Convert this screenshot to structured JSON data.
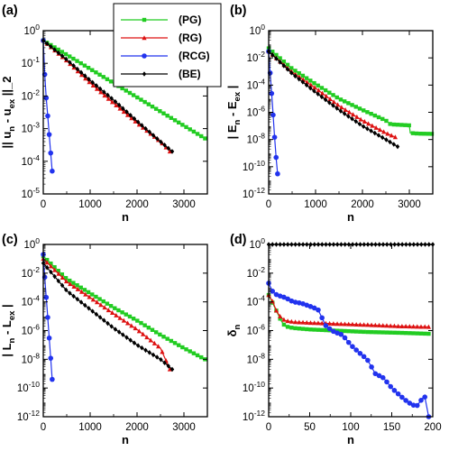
{
  "legend": [
    {
      "name": "(PG)",
      "color": "#22cc22",
      "marker": "square"
    },
    {
      "name": "(RG)",
      "color": "#dd1111",
      "marker": "triangle"
    },
    {
      "name": "(RCG)",
      "color": "#2233ee",
      "marker": "circle"
    },
    {
      "name": "(BE)",
      "color": "#000000",
      "marker": "diamond"
    }
  ],
  "chart_data": [
    {
      "panel": "(a)",
      "type": "line",
      "xlabel": "n",
      "ylabel": "|| u_n - u_ex ||_2",
      "xlim": [
        0,
        3500
      ],
      "xticks": [
        "0",
        "1000",
        "2000",
        "3000"
      ],
      "ylim_log10": [
        -5,
        0
      ],
      "yticks": [
        {
          "m": "10",
          "e": "-5"
        },
        {
          "m": "10",
          "e": "-4"
        },
        {
          "m": "10",
          "e": "-3"
        },
        {
          "m": "10",
          "e": "-2"
        },
        {
          "m": "10",
          "e": "-1"
        },
        {
          "m": "10",
          "e": "0"
        }
      ],
      "y_scale": "log",
      "series": [
        {
          "name": "(PG)",
          "x": [
            0,
            3450
          ],
          "y": [
            0.5,
            0.0005
          ]
        },
        {
          "name": "(RG)",
          "x": [
            0,
            500,
            1000,
            1500,
            2000,
            2500,
            2700
          ],
          "y": [
            0.5,
            0.12,
            0.025,
            0.006,
            0.0015,
            0.0004,
            0.0002
          ]
        },
        {
          "name": "(RCG)",
          "x": [
            0,
            30,
            60,
            100,
            150,
            190
          ],
          "y": [
            0.5,
            0.05,
            0.01,
            0.002,
            0.00025,
            5e-05
          ]
        },
        {
          "name": "(BE)",
          "x": [
            0,
            500,
            1000,
            1500,
            2000,
            2500,
            2750
          ],
          "y": [
            0.5,
            0.13,
            0.03,
            0.0075,
            0.0017,
            0.0004,
            0.0002
          ]
        }
      ]
    },
    {
      "panel": "(b)",
      "type": "line",
      "xlabel": "n",
      "ylabel": "| E_n - E_ex |",
      "xlim": [
        0,
        3500
      ],
      "xticks": [
        "0",
        "1000",
        "2000",
        "3000"
      ],
      "ylim_log10": [
        -12,
        0
      ],
      "yticks": [
        {
          "m": "10",
          "e": "-12"
        },
        {
          "m": "10",
          "e": "-10"
        },
        {
          "m": "10",
          "e": "-8"
        },
        {
          "m": "10",
          "e": "-6"
        },
        {
          "m": "10",
          "e": "-4"
        },
        {
          "m": "10",
          "e": "-2"
        },
        {
          "m": "10",
          "e": "0"
        }
      ],
      "y_scale": "log",
      "series": [
        {
          "name": "(PG)",
          "x": [
            0,
            500,
            1000,
            1500,
            2000,
            2500,
            2600,
            2800,
            3000,
            3020,
            3200,
            3480
          ],
          "y": [
            0.05,
            0.0016,
            0.00012,
            1e-05,
            1.5e-06,
            2.5e-07,
            1.3e-07,
            1.2e-07,
            1.1e-07,
            3e-08,
            2.7e-08,
            2.6e-08
          ]
        },
        {
          "name": "(RG)",
          "x": [
            0,
            500,
            1000,
            1500,
            2000,
            2500,
            2700
          ],
          "y": [
            0.03,
            0.0009,
            6e-05,
            3e-06,
            2.5e-07,
            3e-08,
            1.5e-08
          ]
        },
        {
          "name": "(RCG)",
          "x": [
            0,
            40,
            80,
            120,
            160,
            190
          ],
          "y": [
            0.03,
            0.0003,
            4e-06,
            3e-08,
            4e-10,
            3e-11
          ]
        },
        {
          "name": "(BE)",
          "x": [
            0,
            500,
            1000,
            1500,
            2000,
            2500,
            2750
          ],
          "y": [
            0.03,
            0.0007,
            3e-05,
            1.5e-06,
            1e-07,
            1e-08,
            3e-09
          ]
        }
      ]
    },
    {
      "panel": "(c)",
      "type": "line",
      "xlabel": "n",
      "ylabel": "| L_n - L_ex |",
      "xlim": [
        0,
        3500
      ],
      "xticks": [
        "0",
        "1000",
        "2000",
        "3000"
      ],
      "ylim_log10": [
        -12,
        0
      ],
      "yticks": [
        {
          "m": "10",
          "e": "-12"
        },
        {
          "m": "10",
          "e": "-10"
        },
        {
          "m": "10",
          "e": "-8"
        },
        {
          "m": "10",
          "e": "-6"
        },
        {
          "m": "10",
          "e": "-4"
        },
        {
          "m": "10",
          "e": "-2"
        },
        {
          "m": "10",
          "e": "0"
        }
      ],
      "y_scale": "log",
      "series": [
        {
          "name": "(PG)",
          "x": [
            0,
            500,
            1000,
            1500,
            2000,
            2500,
            3000,
            3450
          ],
          "y": [
            0.15,
            0.004,
            0.0004,
            4e-05,
            5e-06,
            5e-07,
            6e-08,
            1e-08
          ]
        },
        {
          "name": "(RG)",
          "x": [
            0,
            500,
            1000,
            1500,
            2000,
            2500,
            2700
          ],
          "y": [
            0.1,
            0.0025,
            0.0002,
            1.5e-05,
            1.2e-06,
            6e-08,
            2e-09
          ]
        },
        {
          "name": "(RCG)",
          "x": [
            0,
            40,
            80,
            120,
            160,
            190
          ],
          "y": [
            0.2,
            0.002,
            4e-05,
            6e-07,
            1e-08,
            4e-10
          ]
        },
        {
          "name": "(BE)",
          "x": [
            0,
            500,
            1000,
            1500,
            2000,
            2500,
            2750
          ],
          "y": [
            0.05,
            0.0006,
            3e-05,
            1.5e-06,
            1e-07,
            1e-08,
            2e-09
          ]
        }
      ]
    },
    {
      "panel": "(d)",
      "type": "line",
      "xlabel": "n",
      "ylabel": "δ_n",
      "xlim": [
        0,
        200
      ],
      "xticks": [
        "0",
        "50",
        "100",
        "150",
        "200"
      ],
      "ylim_log10": [
        -12,
        0
      ],
      "yticks": [
        {
          "m": "10",
          "e": "-12"
        },
        {
          "m": "10",
          "e": "-10"
        },
        {
          "m": "10",
          "e": "-8"
        },
        {
          "m": "10",
          "e": "-6"
        },
        {
          "m": "10",
          "e": "-4"
        },
        {
          "m": "10",
          "e": "-2"
        },
        {
          "m": "10",
          "e": "0"
        }
      ],
      "y_scale": "log",
      "series": [
        {
          "name": "(PG)",
          "x": [
            0,
            5,
            10,
            15,
            20,
            30,
            50,
            80,
            120,
            160,
            195
          ],
          "y": [
            0.0003,
            8e-05,
            2e-05,
            5e-06,
            2e-06,
            1.5e-06,
            1.2e-06,
            1e-06,
            8e-07,
            7e-07,
            6e-07
          ]
        },
        {
          "name": "(RG)",
          "x": [
            0,
            5,
            10,
            15,
            20,
            30,
            50,
            80,
            120,
            160,
            195
          ],
          "y": [
            0.0003,
            0.0001,
            2e-05,
            8e-06,
            5e-06,
            4e-06,
            3.5e-06,
            3e-06,
            2.5e-06,
            2e-06,
            1.8e-06
          ]
        },
        {
          "name": "(RCG)",
          "x": [
            0,
            5,
            10,
            20,
            30,
            40,
            50,
            60,
            70,
            80,
            90,
            100,
            110,
            120,
            130,
            140,
            150,
            160,
            170,
            180,
            190,
            195
          ],
          "y": [
            0.002,
            0.0005,
            0.0003,
            0.0002,
            0.0001,
            8e-05,
            5e-05,
            3e-05,
            2e-06,
            8e-07,
            5e-07,
            1e-07,
            3e-08,
            1e-08,
            1e-09,
            5e-10,
            1e-10,
            3e-11,
            1e-11,
            5e-12,
            3e-11,
            1e-12
          ]
        },
        {
          "name": "(BE)",
          "x": [
            0,
            200
          ],
          "y": [
            1,
            1
          ]
        }
      ]
    }
  ]
}
